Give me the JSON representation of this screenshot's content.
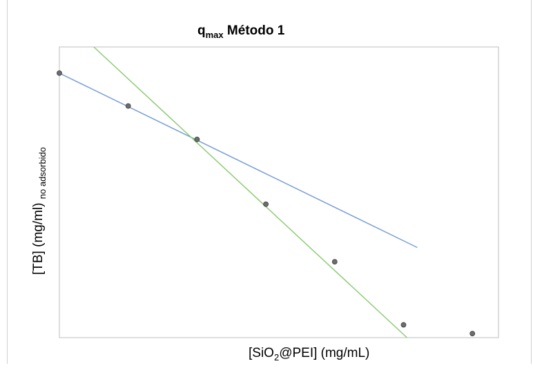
{
  "chart_data": {
    "type": "scatter",
    "title": {
      "main": "q",
      "subscript": "max",
      "rest": " Método 1"
    },
    "xlabel": {
      "part1": "[SiO",
      "subscript": "2",
      "part2": "@PEI] (mg/mL)"
    },
    "ylabel": {
      "main": "[TB] (mg/ml) ",
      "subscript": "no adsorbido"
    },
    "xlim": [
      0,
      6
    ],
    "ylim": [
      0,
      10
    ],
    "grid": false,
    "legend": "none",
    "points": [
      {
        "x": 0,
        "y": 9.1
      },
      {
        "x": 1,
        "y": 7.97
      },
      {
        "x": 2,
        "y": 6.82
      },
      {
        "x": 3,
        "y": 4.59
      },
      {
        "x": 4,
        "y": 2.61
      },
      {
        "x": 5,
        "y": 0.44
      },
      {
        "x": 6,
        "y": 0.14
      }
    ],
    "series": [
      {
        "values": [
          [
            0,
            9.1
          ],
          [
            5.2,
            3.1
          ]
        ],
        "color": "#7a9fd6"
      },
      {
        "values": [
          [
            0.5,
            10.0
          ],
          [
            5.05,
            0.0
          ]
        ],
        "color": "#8ccb74"
      }
    ],
    "marker_color": "#6d6d6d"
  }
}
